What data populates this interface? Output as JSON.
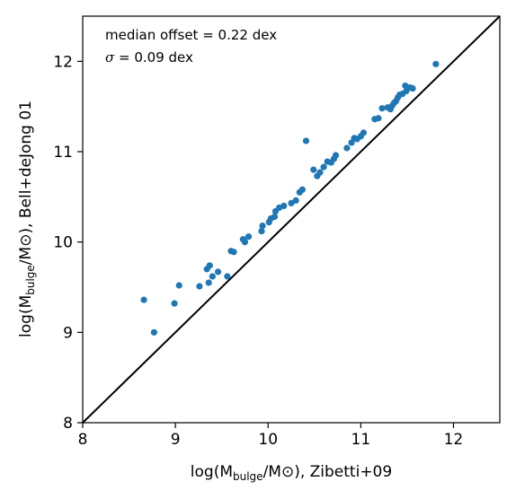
{
  "chart_data": {
    "type": "scatter",
    "xlim": [
      8,
      12.5
    ],
    "ylim": [
      8,
      12.5
    ],
    "x_ticks": [
      8,
      9,
      10,
      11,
      12
    ],
    "y_ticks": [
      8,
      9,
      10,
      11,
      12
    ],
    "x_tick_labels": [
      "8",
      "9",
      "10",
      "11",
      "12"
    ],
    "y_tick_labels": [
      "8",
      "9",
      "10",
      "11",
      "12"
    ],
    "xlabel": {
      "prefix": "log(M",
      "sub": "bulge",
      "suffix": "/M⊙), Zibetti+09"
    },
    "ylabel": {
      "prefix": "log(M",
      "sub": "bulge",
      "suffix": "/M⊙), Bell+deJong 01"
    },
    "annotations": {
      "line1": "median offset = 0.22 dex",
      "line2_symbol": "σ",
      "line2_rest": " = 0.09 dex"
    },
    "reference_line": {
      "type": "one-to-one",
      "color": "#000000"
    },
    "grid": false,
    "marker_color": "#1f77b4",
    "points": [
      [
        8.66,
        9.36
      ],
      [
        8.77,
        9.0
      ],
      [
        8.99,
        9.32
      ],
      [
        9.04,
        9.52
      ],
      [
        9.26,
        9.51
      ],
      [
        9.34,
        9.7
      ],
      [
        9.37,
        9.74
      ],
      [
        9.36,
        9.55
      ],
      [
        9.4,
        9.62
      ],
      [
        9.46,
        9.67
      ],
      [
        9.56,
        9.62
      ],
      [
        9.6,
        9.9
      ],
      [
        9.63,
        9.89
      ],
      [
        9.73,
        10.03
      ],
      [
        9.75,
        10.0
      ],
      [
        9.79,
        10.06
      ],
      [
        9.93,
        10.12
      ],
      [
        9.94,
        10.18
      ],
      [
        10.01,
        10.22
      ],
      [
        10.03,
        10.26
      ],
      [
        10.07,
        10.28
      ],
      [
        10.08,
        10.34
      ],
      [
        10.12,
        10.38
      ],
      [
        10.17,
        10.4
      ],
      [
        10.25,
        10.43
      ],
      [
        10.3,
        10.46
      ],
      [
        10.34,
        10.55
      ],
      [
        10.37,
        10.58
      ],
      [
        10.41,
        11.12
      ],
      [
        10.49,
        10.8
      ],
      [
        10.53,
        10.73
      ],
      [
        10.56,
        10.77
      ],
      [
        10.6,
        10.83
      ],
      [
        10.64,
        10.89
      ],
      [
        10.68,
        10.88
      ],
      [
        10.71,
        10.92
      ],
      [
        10.73,
        10.96
      ],
      [
        10.85,
        11.04
      ],
      [
        10.9,
        11.1
      ],
      [
        10.93,
        11.15
      ],
      [
        10.96,
        11.14
      ],
      [
        11.0,
        11.17
      ],
      [
        11.03,
        11.21
      ],
      [
        11.15,
        11.36
      ],
      [
        11.19,
        11.37
      ],
      [
        11.23,
        11.48
      ],
      [
        11.29,
        11.49
      ],
      [
        11.32,
        11.47
      ],
      [
        11.34,
        11.51
      ],
      [
        11.36,
        11.54
      ],
      [
        11.38,
        11.56
      ],
      [
        11.4,
        11.6
      ],
      [
        11.42,
        11.63
      ],
      [
        11.45,
        11.64
      ],
      [
        11.49,
        11.67
      ],
      [
        11.48,
        11.73
      ],
      [
        11.53,
        11.71
      ],
      [
        11.56,
        11.7
      ],
      [
        11.81,
        11.97
      ]
    ]
  }
}
